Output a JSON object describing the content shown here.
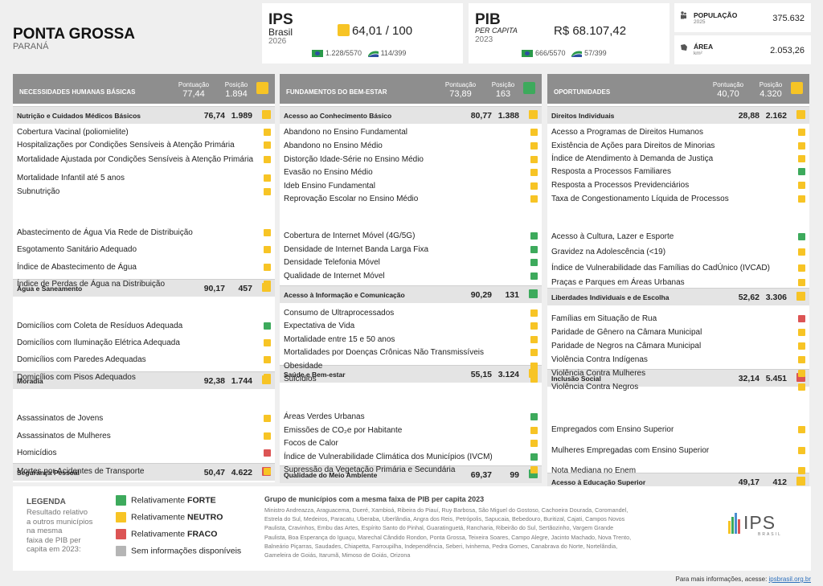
{
  "city": {
    "name": "PONTA GROSSA",
    "state": "PARANÁ"
  },
  "ips": {
    "label": "IPS",
    "sub": "Brasil",
    "year": "2026",
    "score": "64,01 / 100",
    "rank_br": "1.228/5570",
    "rank_grp": "114/399"
  },
  "pib": {
    "label": "PIB",
    "sub": "PER CAPITA",
    "year": "2023",
    "value": "R$ 68.107,42",
    "rank_br": "666/5570",
    "rank_grp": "57/399"
  },
  "pop": {
    "label": "POPULAÇÃO",
    "year": "2025",
    "value": "375.632",
    "icon": "people-icon"
  },
  "area": {
    "label": "ÁREA",
    "unit": "km²",
    "value": "2.053,26",
    "icon": "area-icon"
  },
  "labels": {
    "pontuacao": "Pontuação",
    "posicao": "Posição"
  },
  "columns": [
    {
      "name": "NECESSIDADES HUMANAS BÁSICAS",
      "score": "77,44",
      "pos": "1.894",
      "color": "y",
      "sections": [
        {
          "name": "Nutrição e Cuidados Médicos Básicos",
          "score": "76,74",
          "pos": "1.989",
          "color": "y",
          "items": [
            {
              "t": "Cobertura Vacinal (poliomielite)",
              "c": "y"
            },
            {
              "t": "Hospitalizações por Condições Sensíveis à Atenção Primária",
              "c": "y"
            },
            {
              "t": "Mortalidade Ajustada por Condições Sensíveis à Atenção Primária",
              "c": "y"
            },
            {
              "t": "Mortalidade Infantil até 5 anos",
              "c": "y"
            },
            {
              "t": "Subnutrição",
              "c": "y"
            }
          ]
        },
        {
          "name": "Água e Saneamento",
          "score": "90,17",
          "pos": "457",
          "color": "y",
          "items": [
            {
              "t": "Abastecimento de Água Via Rede de Distribuição",
              "c": "y"
            },
            {
              "t": "Esgotamento Sanitário Adequado",
              "c": "y"
            },
            {
              "t": "Índice de Abastecimento de Água",
              "c": "y"
            },
            {
              "t": "Índice de Perdas de Água na Distribuição",
              "c": "y"
            }
          ]
        },
        {
          "name": "Moradia",
          "score": "92,38",
          "pos": "1.744",
          "color": "y",
          "items": [
            {
              "t": "Domicílios com Coleta de Resíduos Adequada",
              "c": "g"
            },
            {
              "t": "Domicílios com Iluminação Elétrica Adequada",
              "c": "y"
            },
            {
              "t": "Domicílios com Paredes Adequadas",
              "c": "y"
            },
            {
              "t": "Domicílios com Pisos Adequados",
              "c": "y"
            }
          ]
        },
        {
          "name": "Segurança Pessoal",
          "score": "50,47",
          "pos": "4.622",
          "color": "r",
          "items": [
            {
              "t": "Assassinatos de Jovens",
              "c": "y"
            },
            {
              "t": "Assassinatos de Mulheres",
              "c": "y"
            },
            {
              "t": "Homicídios",
              "c": "r"
            },
            {
              "t": "Mortes por Acidentes de Transporte",
              "c": "y"
            }
          ]
        }
      ]
    },
    {
      "name": "FUNDAMENTOS DO BEM-ESTAR",
      "score": "73,89",
      "pos": "163",
      "color": "g",
      "sections": [
        {
          "name": "Acesso ao Conhecimento Básico",
          "score": "80,77",
          "pos": "1.388",
          "color": "y",
          "items": [
            {
              "t": "Abandono no Ensino Fundamental",
              "c": "y"
            },
            {
              "t": "Abandono no Ensino Médio",
              "c": "y"
            },
            {
              "t": "Distorção Idade-Série no Ensino Médio",
              "c": "y"
            },
            {
              "t": "Evasão no Ensino Médio",
              "c": "y"
            },
            {
              "t": "Ideb Ensino Fundamental",
              "c": "y"
            },
            {
              "t": "Reprovação Escolar no Ensino Médio",
              "c": "y"
            }
          ]
        },
        {
          "name": "Acesso à Informação e Comunicação",
          "score": "90,29",
          "pos": "131",
          "color": "g",
          "items": [
            {
              "t": "Cobertura de Internet Móvel (4G/5G)",
              "c": "g"
            },
            {
              "t": "Densidade de Internet Banda Larga Fixa",
              "c": "g"
            },
            {
              "t": "Densidade Telefonia Móvel",
              "c": "g"
            },
            {
              "t": "Qualidade de Internet Móvel",
              "c": "g"
            }
          ]
        },
        {
          "name": "Saúde e Bem-estar",
          "score": "55,15",
          "pos": "3.124",
          "color": "y",
          "items": [
            {
              "t": "Consumo de Ultraprocessados",
              "c": "y"
            },
            {
              "t": "Expectativa de Vida",
              "c": "y"
            },
            {
              "t": "Mortalidade entre 15 e 50 anos",
              "c": "y"
            },
            {
              "t": "Mortalidades por Doenças Crônicas Não Transmissíveis",
              "c": "y"
            },
            {
              "t": "Obesidade",
              "c": "y"
            },
            {
              "t": "Suicídios",
              "c": "y"
            }
          ]
        },
        {
          "name": "Qualidade do Meio Ambiente",
          "score": "69,37",
          "pos": "99",
          "color": "g",
          "items": [
            {
              "t": "Áreas Verdes Urbanas",
              "c": "g"
            },
            {
              "t": "Emissões de CO₂e por Habitante",
              "c": "y"
            },
            {
              "t": "Focos de Calor",
              "c": "y"
            },
            {
              "t": "Índice de Vulnerabilidade Climática dos Municípios (IVCM)",
              "c": "g"
            },
            {
              "t": "Supressão da Vegetação Primária e Secundária",
              "c": "y"
            }
          ]
        }
      ]
    },
    {
      "name": "OPORTUNIDADES",
      "score": "40,70",
      "pos": "4.320",
      "color": "y",
      "sections": [
        {
          "name": "Direitos Individuais",
          "score": "28,88",
          "pos": "2.162",
          "color": "y",
          "items": [
            {
              "t": "Acesso a Programas de Direitos Humanos",
              "c": "y"
            },
            {
              "t": "Existência de Ações para Direitos de Minorias",
              "c": "y"
            },
            {
              "t": "Índice de Atendimento à Demanda de Justiça",
              "c": "y"
            },
            {
              "t": "Resposta a Processos Familiares",
              "c": "g"
            },
            {
              "t": "Resposta a Processos Previdenciários",
              "c": "y"
            },
            {
              "t": "Taxa de Congestionamento Líquida de Processos",
              "c": "y"
            }
          ]
        },
        {
          "name": "Liberdades Individuais e de Escolha",
          "score": "52,62",
          "pos": "3.306",
          "color": "y",
          "items": [
            {
              "t": "Acesso à Cultura, Lazer e Esporte",
              "c": "g"
            },
            {
              "t": "Gravidez na Adolescência (<19)",
              "c": "y"
            },
            {
              "t": "Índice de Vulnerabilidade das Famílias do CadÚnico (IVCAD)",
              "c": "y"
            },
            {
              "t": "Praças e Parques em Áreas Urbanas",
              "c": "y"
            }
          ]
        },
        {
          "name": "Inclusão Social",
          "score": "32,14",
          "pos": "5.451",
          "color": "r",
          "items": [
            {
              "t": "Famílias em Situação de Rua",
              "c": "r"
            },
            {
              "t": "Paridade de Gênero na Câmara Municipal",
              "c": "y"
            },
            {
              "t": "Paridade de Negros na Câmara Municipal",
              "c": "y"
            },
            {
              "t": "Violência Contra Indígenas",
              "c": "y"
            },
            {
              "t": "Violência Contra Mulheres",
              "c": "y"
            },
            {
              "t": "Violência Contra Negros",
              "c": "y"
            }
          ]
        },
        {
          "name": "Acesso à Educação Superior",
          "score": "49,17",
          "pos": "412",
          "color": "y",
          "items": [
            {
              "t": "Empregados com Ensino Superior",
              "c": "y"
            },
            {
              "t": "Mulheres Empregadas com Ensino Superior",
              "c": "y"
            },
            {
              "t": "Nota Mediana no Enem",
              "c": "y"
            }
          ]
        }
      ]
    }
  ],
  "legend": {
    "title": "LEGENDA",
    "desc": [
      "Resultado relativo",
      "a outros municípios",
      "na mesma",
      "faixa de PIB per",
      "capita em 2023:"
    ],
    "items": [
      {
        "c": "g",
        "pre": "Relativamente ",
        "b": "FORTE"
      },
      {
        "c": "y",
        "pre": "Relativamente ",
        "b": "NEUTRO"
      },
      {
        "c": "r",
        "pre": "Relativamente ",
        "b": "FRACO"
      },
      {
        "c": "gr",
        "pre": "Sem informações disponíveis",
        "b": ""
      }
    ]
  },
  "group": {
    "title": "Grupo de municípios com a mesma faixa de PIB per capita 2023",
    "lines": [
      "Ministro Andreazza, Araguacema, Dueré, Xambioá, Ribeira do Piauí, Ruy Barbosa, São Miguel do Gostoso, Cachoeira Dourada, Coromandel,",
      "Estrela do Sul, Medeiros, Paracatu, Uberaba, Uberlândia, Angra dos Reis, Petrópolis, Sapucaia, Bebedouro, Buritizal, Cajati, Campos Novos",
      "Paulista, Cravinhos, Embu das Artes, Espírito Santo do Pinhal, Guaratinguetá, Rancharia, Ribeirão do Sul, Sertãozinho, Vargem Grande",
      "Paulista, Boa Esperança do Iguaçu, Marechal Cândido Rondon, Ponta Grossa, Teixeira Soares, Campo Alegre, Jacinto Machado, Nova Trento,",
      "Balneário Piçarras, Saudades, Chiapetta, Farroupilha, Independência, Seberi, Ivinhema, Pedra Gomes, Canabrava do Norte, Nortelândia,",
      "Gameleira de Goiás, Itarumã, Mimoso de Goiás, Orizona"
    ]
  },
  "logo": {
    "text": "IPS",
    "sub": "BRASIL"
  },
  "footer": {
    "text": "Para mais informações, acesse: ",
    "link": "ipsbrasil.org.br"
  }
}
